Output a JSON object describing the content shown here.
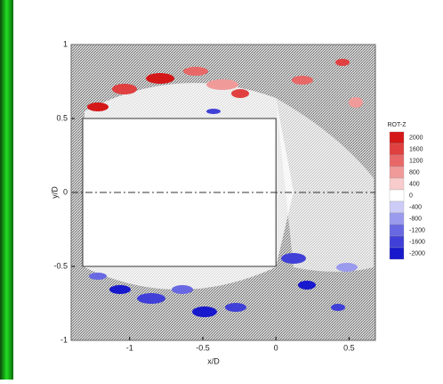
{
  "chart_data": {
    "type": "contour",
    "x_label": "x/D",
    "y_label": "y/D",
    "xlim": [
      -1.4,
      0.68
    ],
    "ylim": [
      -1,
      1
    ],
    "xticks": [
      -1,
      -0.5,
      0,
      0.5
    ],
    "yticks": [
      -1,
      -0.5,
      0,
      0.5,
      1
    ],
    "legend_title": "ROT-Z",
    "levels": [
      2000,
      1600,
      1200,
      800,
      400,
      0,
      -400,
      -800,
      -1200,
      -1600,
      -2000
    ],
    "level_colors": [
      "#d41818",
      "#e04040",
      "#e86868",
      "#f09a9a",
      "#f8cccc",
      "#ffffff",
      "#ccccf6",
      "#9a9aee",
      "#6868e2",
      "#4040d8",
      "#1818cc"
    ]
  }
}
